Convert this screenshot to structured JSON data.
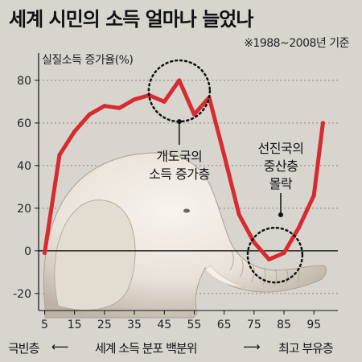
{
  "title": "세계 시민의 소득 얼마나 늘었나",
  "subtitle": "※1988~2008년 기준",
  "colors": {
    "background": "#d8d5cf",
    "line": "#d62b31",
    "text": "#111111"
  },
  "bottom_axis": {
    "left_text": "극빈층",
    "center_text": "세계 소득 분포 백분위",
    "right_text": "최고 부유층"
  },
  "chart_data": {
    "type": "line",
    "ylabel": "실질소득 증가율(%)",
    "xlabel": "",
    "xticks": [
      5,
      15,
      25,
      35,
      45,
      55,
      65,
      75,
      85,
      95
    ],
    "yticks": [
      80,
      60,
      40,
      20,
      0,
      -20
    ],
    "xlim": [
      3,
      103
    ],
    "ylim": [
      -28,
      86
    ],
    "grid": true,
    "series": [
      {
        "color": "#d62b31",
        "x": [
          5,
          10,
          15,
          20,
          25,
          30,
          35,
          40,
          45,
          50,
          55,
          60,
          65,
          70,
          75,
          80,
          85,
          90,
          95,
          98
        ],
        "y": [
          -1,
          45,
          56,
          64,
          68,
          67,
          71,
          73,
          70,
          80,
          64,
          72,
          45,
          17,
          4,
          -4,
          -1,
          11,
          26,
          60
        ]
      }
    ],
    "annotations": [
      {
        "lines": [
          "개도국의",
          "소득 증가층"
        ],
        "x": 50,
        "y": 72
      },
      {
        "lines": [
          "선진국의",
          "중산층",
          "몰락"
        ],
        "x": 82,
        "y": -2
      }
    ]
  },
  "illustration": {
    "subject": "elephant",
    "colors": [
      "#efe8df",
      "#a59c8e"
    ]
  }
}
